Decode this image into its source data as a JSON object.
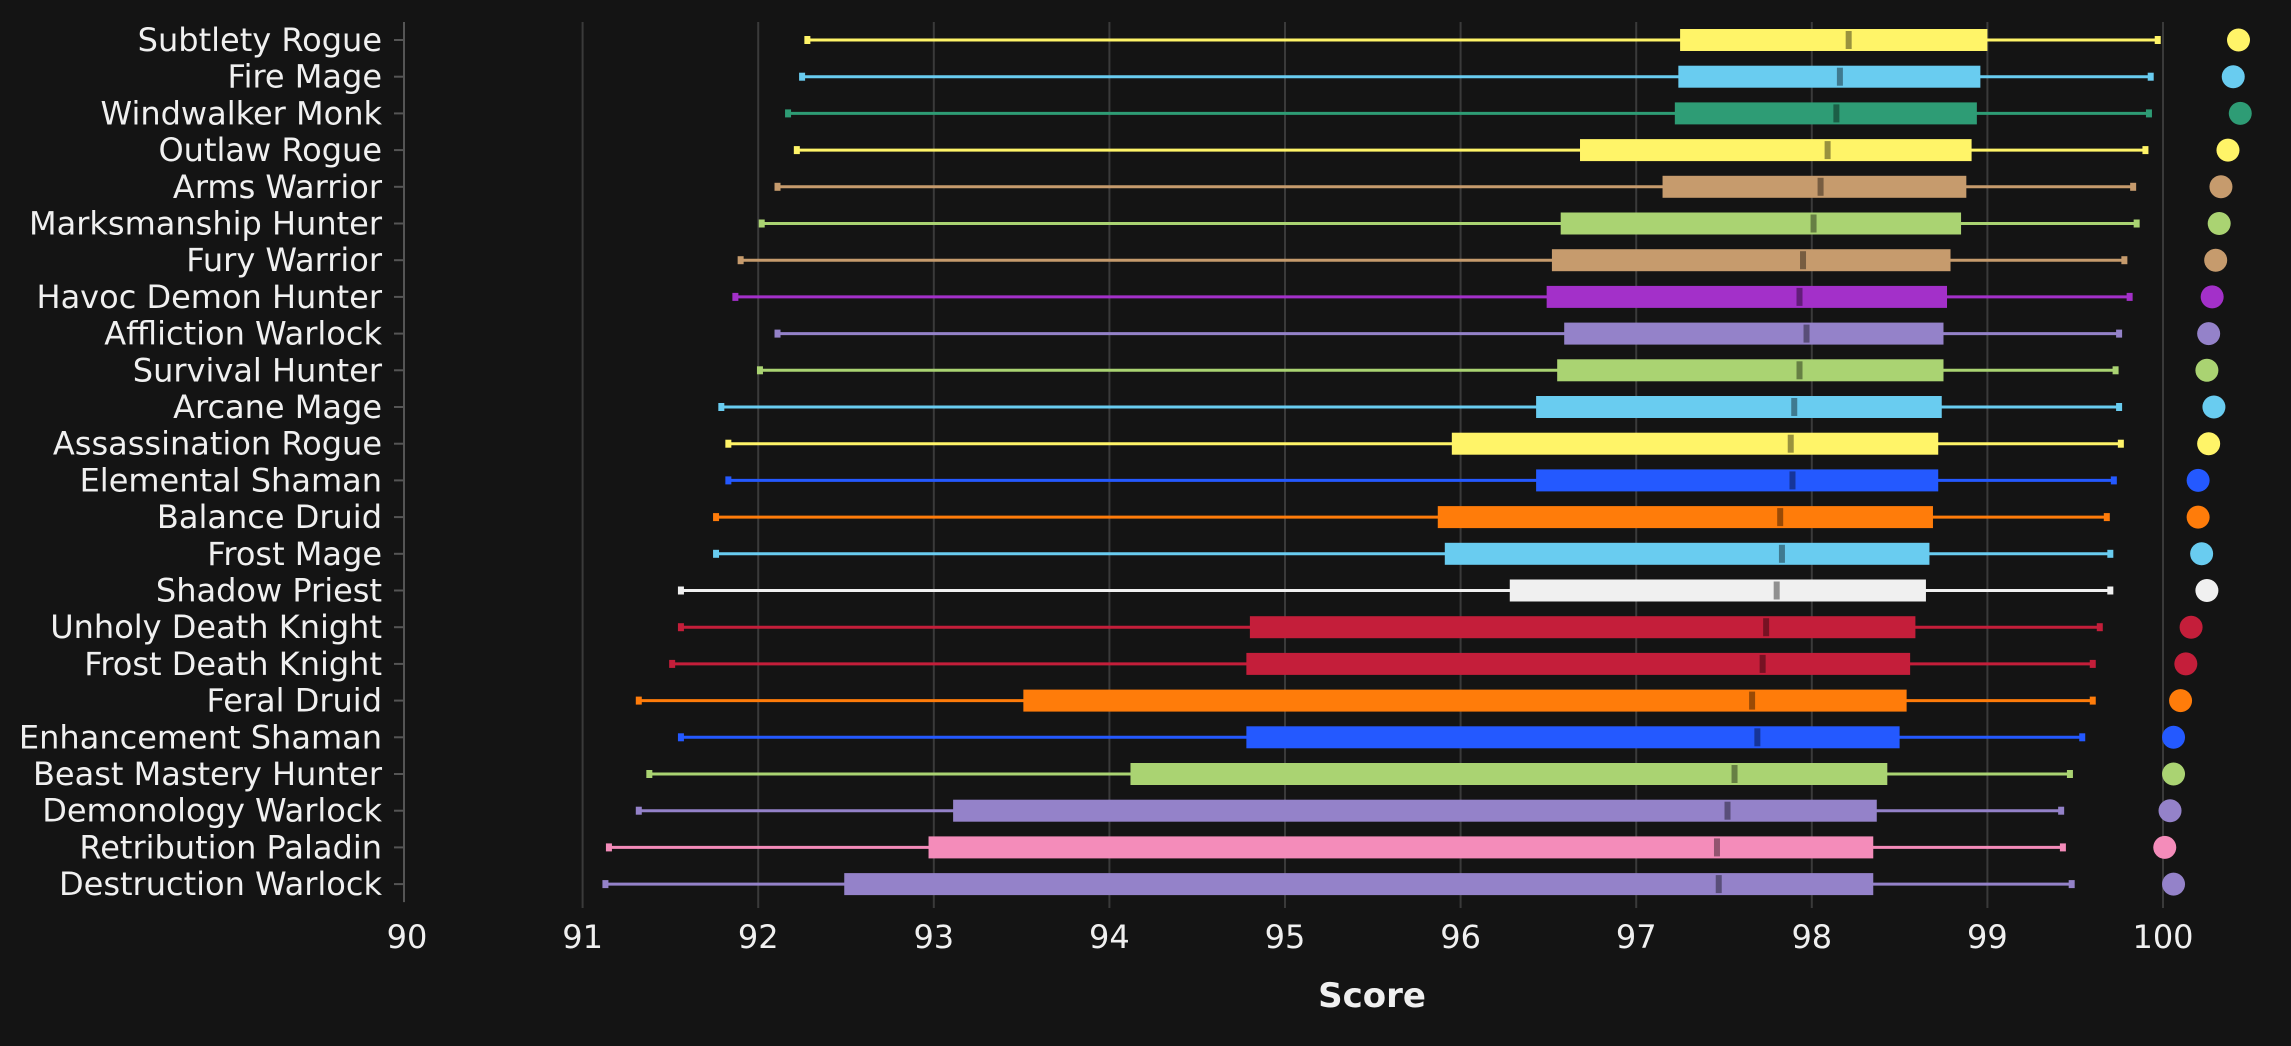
{
  "chart_data": {
    "type": "box",
    "xlabel": "Score",
    "xlim": [
      90,
      100.5
    ],
    "xticks": [
      90,
      91,
      92,
      93,
      94,
      95,
      96,
      97,
      98,
      99,
      100
    ],
    "grid": true,
    "series": [
      {
        "name": "Subtlety Rogue",
        "min": 92.28,
        "q1": 97.25,
        "median": 98.21,
        "q3": 99.0,
        "max": 99.97,
        "dot": 100.43,
        "color": "#FFF468"
      },
      {
        "name": "Fire Mage",
        "min": 92.25,
        "q1": 97.24,
        "median": 98.16,
        "q3": 98.96,
        "max": 99.93,
        "dot": 100.4,
        "color": "#69CCF0"
      },
      {
        "name": "Windwalker Monk",
        "min": 92.17,
        "q1": 97.22,
        "median": 98.14,
        "q3": 98.94,
        "max": 99.92,
        "dot": 100.44,
        "color": "#2E9C75"
      },
      {
        "name": "Outlaw Rogue",
        "min": 92.22,
        "q1": 96.68,
        "median": 98.09,
        "q3": 98.91,
        "max": 99.9,
        "dot": 100.37,
        "color": "#FFF468"
      },
      {
        "name": "Arms Warrior",
        "min": 92.11,
        "q1": 97.15,
        "median": 98.05,
        "q3": 98.88,
        "max": 99.83,
        "dot": 100.33,
        "color": "#C69B6D"
      },
      {
        "name": "Marksmanship Hunter",
        "min": 92.02,
        "q1": 96.57,
        "median": 98.01,
        "q3": 98.85,
        "max": 99.85,
        "dot": 100.32,
        "color": "#AAD372"
      },
      {
        "name": "Fury Warrior",
        "min": 91.9,
        "q1": 96.52,
        "median": 97.95,
        "q3": 98.79,
        "max": 99.78,
        "dot": 100.3,
        "color": "#C69B6D"
      },
      {
        "name": "Havoc Demon Hunter",
        "min": 91.87,
        "q1": 96.49,
        "median": 97.93,
        "q3": 98.77,
        "max": 99.81,
        "dot": 100.28,
        "color": "#A330C9"
      },
      {
        "name": "Affliction Warlock",
        "min": 92.11,
        "q1": 96.59,
        "median": 97.97,
        "q3": 98.75,
        "max": 99.75,
        "dot": 100.26,
        "color": "#9482C9"
      },
      {
        "name": "Survival Hunter",
        "min": 92.01,
        "q1": 96.55,
        "median": 97.93,
        "q3": 98.75,
        "max": 99.73,
        "dot": 100.25,
        "color": "#AAD372"
      },
      {
        "name": "Arcane Mage",
        "min": 91.79,
        "q1": 96.43,
        "median": 97.9,
        "q3": 98.74,
        "max": 99.75,
        "dot": 100.29,
        "color": "#69CCF0"
      },
      {
        "name": "Assassination Rogue",
        "min": 91.83,
        "q1": 95.95,
        "median": 97.88,
        "q3": 98.72,
        "max": 99.76,
        "dot": 100.26,
        "color": "#FFF468"
      },
      {
        "name": "Elemental Shaman",
        "min": 91.83,
        "q1": 96.43,
        "median": 97.89,
        "q3": 98.72,
        "max": 99.72,
        "dot": 100.2,
        "color": "#2459FF"
      },
      {
        "name": "Balance Druid",
        "min": 91.76,
        "q1": 95.87,
        "median": 97.82,
        "q3": 98.69,
        "max": 99.68,
        "dot": 100.2,
        "color": "#FF7C0A"
      },
      {
        "name": "Frost Mage",
        "min": 91.76,
        "q1": 95.91,
        "median": 97.83,
        "q3": 98.67,
        "max": 99.7,
        "dot": 100.22,
        "color": "#69CCF0"
      },
      {
        "name": "Shadow Priest",
        "min": 91.56,
        "q1": 96.28,
        "median": 97.8,
        "q3": 98.65,
        "max": 99.7,
        "dot": 100.25,
        "color": "#F0F0F0"
      },
      {
        "name": "Unholy Death Knight",
        "min": 91.56,
        "q1": 94.8,
        "median": 97.74,
        "q3": 98.59,
        "max": 99.64,
        "dot": 100.16,
        "color": "#C41E3A"
      },
      {
        "name": "Frost Death Knight",
        "min": 91.51,
        "q1": 94.78,
        "median": 97.72,
        "q3": 98.56,
        "max": 99.6,
        "dot": 100.13,
        "color": "#C41E3A"
      },
      {
        "name": "Feral Druid",
        "min": 91.32,
        "q1": 93.51,
        "median": 97.66,
        "q3": 98.54,
        "max": 99.6,
        "dot": 100.1,
        "color": "#FF7C0A"
      },
      {
        "name": "Enhancement Shaman",
        "min": 91.56,
        "q1": 94.78,
        "median": 97.69,
        "q3": 98.5,
        "max": 99.54,
        "dot": 100.06,
        "color": "#2459FF"
      },
      {
        "name": "Beast Mastery Hunter",
        "min": 91.38,
        "q1": 94.12,
        "median": 97.56,
        "q3": 98.43,
        "max": 99.47,
        "dot": 100.06,
        "color": "#AAD372"
      },
      {
        "name": "Demonology Warlock",
        "min": 91.32,
        "q1": 93.11,
        "median": 97.52,
        "q3": 98.37,
        "max": 99.42,
        "dot": 100.04,
        "color": "#9482C9"
      },
      {
        "name": "Retribution Paladin",
        "min": 91.15,
        "q1": 92.97,
        "median": 97.46,
        "q3": 98.35,
        "max": 99.43,
        "dot": 100.01,
        "color": "#F48CBA"
      },
      {
        "name": "Destruction Warlock",
        "min": 91.13,
        "q1": 92.49,
        "median": 97.47,
        "q3": 98.35,
        "max": 99.48,
        "dot": 100.06,
        "color": "#9482C9"
      }
    ]
  },
  "colors": {
    "background": "#141414",
    "grid": "#3A3A3A",
    "axis": "#555555",
    "text": "#F0F0F0"
  }
}
